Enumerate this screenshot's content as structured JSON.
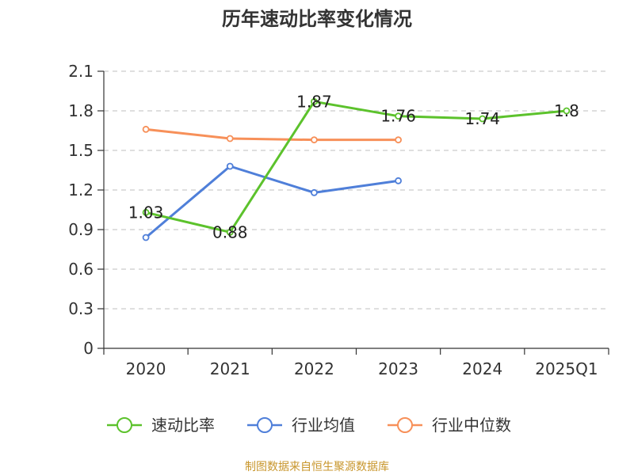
{
  "chart_data": {
    "type": "line",
    "title": "历年速动比率变化情况",
    "categories": [
      "2020",
      "2021",
      "2022",
      "2023",
      "2024",
      "2025Q1"
    ],
    "ylim": [
      0,
      2.1
    ],
    "yticks": [
      "0",
      "0.3",
      "0.6",
      "0.9",
      "1.2",
      "1.5",
      "1.8",
      "2.1"
    ],
    "grid": true,
    "legend_position": "bottom",
    "series": [
      {
        "name": "速动比率",
        "color": "#5cc22c",
        "values": [
          1.03,
          0.88,
          1.87,
          1.76,
          1.74,
          1.8
        ],
        "labels": [
          "1.03",
          "0.88",
          "1.87",
          "1.76",
          "1.74",
          "1.8"
        ]
      },
      {
        "name": "行业均值",
        "color": "#4f7fd9",
        "values": [
          0.84,
          1.38,
          1.18,
          1.27,
          null,
          null
        ]
      },
      {
        "name": "行业中位数",
        "color": "#f79059",
        "values": [
          1.66,
          1.59,
          1.58,
          1.58,
          null,
          null
        ]
      }
    ]
  },
  "source": "制图数据来自恒生聚源数据库"
}
